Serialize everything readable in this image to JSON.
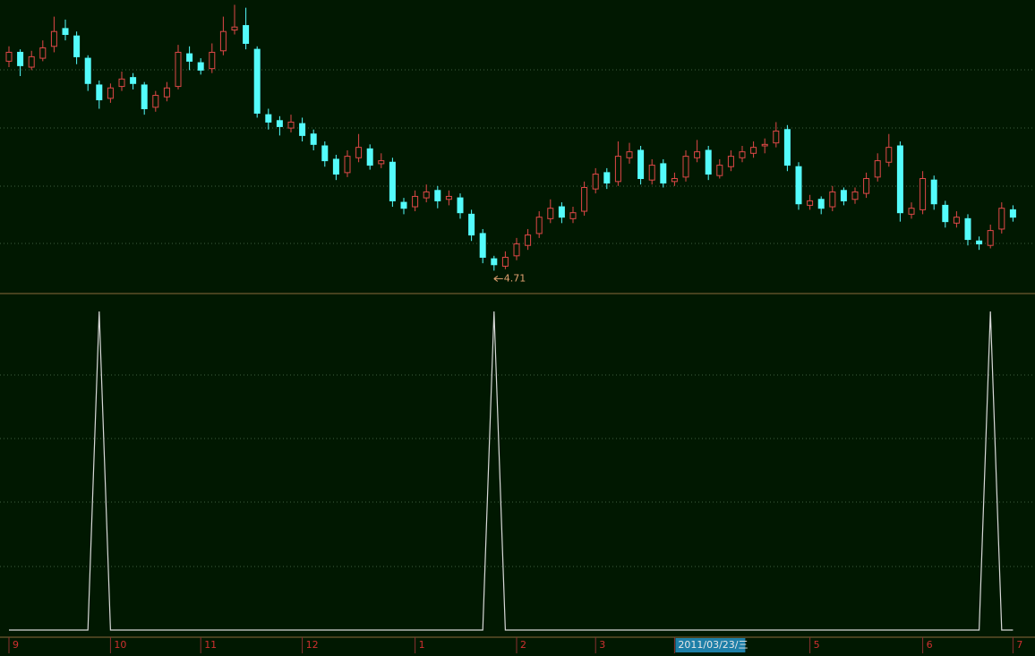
{
  "chart_data": [
    {
      "type": "candlestick",
      "categories": [
        "9",
        null,
        null,
        null,
        null,
        null,
        null,
        null,
        null,
        "10",
        null,
        null,
        null,
        null,
        null,
        null,
        null,
        "11",
        null,
        null,
        null,
        null,
        null,
        null,
        null,
        null,
        "12",
        null,
        null,
        null,
        null,
        null,
        null,
        null,
        null,
        null,
        "1",
        null,
        null,
        null,
        null,
        null,
        null,
        null,
        null,
        "2",
        null,
        null,
        null,
        null,
        null,
        null,
        "3",
        null,
        null,
        null,
        null,
        null,
        null,
        "2011/03/23/三",
        null,
        null,
        null,
        null,
        null,
        null,
        null,
        null,
        null,
        null,
        null,
        "5",
        null,
        null,
        null,
        null,
        null,
        null,
        null,
        null,
        null,
        "6",
        null,
        null,
        null,
        null,
        null,
        null,
        null,
        "7"
      ],
      "highlight_category": 59,
      "open": [
        6.12,
        6.18,
        6.08,
        6.14,
        6.22,
        6.34,
        6.29,
        6.14,
        5.96,
        5.87,
        5.95,
        6.01,
        5.96,
        5.81,
        5.88,
        5.95,
        6.17,
        6.11,
        6.07,
        6.19,
        6.33,
        6.36,
        6.2,
        5.76,
        5.72,
        5.67,
        5.7,
        5.63,
        5.55,
        5.46,
        5.37,
        5.47,
        5.53,
        5.43,
        5.44,
        5.17,
        5.14,
        5.2,
        5.25,
        5.19,
        5.2,
        5.09,
        4.96,
        4.79,
        4.74,
        4.81,
        4.88,
        4.96,
        5.06,
        5.14,
        5.06,
        5.11,
        5.26,
        5.37,
        5.31,
        5.47,
        5.52,
        5.32,
        5.43,
        5.31,
        5.34,
        5.47,
        5.52,
        5.35,
        5.41,
        5.47,
        5.5,
        5.55,
        5.57,
        5.66,
        5.41,
        5.15,
        5.19,
        5.14,
        5.25,
        5.19,
        5.23,
        5.34,
        5.44,
        5.55,
        5.09,
        5.12,
        5.32,
        5.15,
        5.03,
        5.06,
        4.91,
        4.88,
        4.99,
        5.12
      ],
      "high": [
        6.22,
        6.2,
        6.19,
        6.26,
        6.42,
        6.4,
        6.32,
        6.16,
        5.99,
        5.97,
        6.05,
        6.04,
        5.98,
        5.92,
        5.98,
        6.23,
        6.22,
        6.14,
        6.24,
        6.42,
        6.5,
        6.48,
        6.22,
        5.8,
        5.75,
        5.76,
        5.74,
        5.66,
        5.58,
        5.49,
        5.52,
        5.63,
        5.56,
        5.5,
        5.47,
        5.2,
        5.25,
        5.29,
        5.28,
        5.25,
        5.23,
        5.12,
        4.99,
        4.81,
        4.84,
        4.93,
        4.99,
        5.11,
        5.19,
        5.17,
        5.14,
        5.31,
        5.4,
        5.4,
        5.58,
        5.57,
        5.55,
        5.46,
        5.46,
        5.37,
        5.52,
        5.59,
        5.55,
        5.46,
        5.52,
        5.55,
        5.58,
        5.6,
        5.71,
        5.69,
        5.44,
        5.22,
        5.21,
        5.28,
        5.27,
        5.27,
        5.37,
        5.5,
        5.63,
        5.58,
        5.17,
        5.38,
        5.35,
        5.18,
        5.11,
        5.09,
        4.94,
        5.02,
        5.17,
        5.15
      ],
      "low": [
        6.08,
        6.02,
        6.06,
        6.12,
        6.18,
        6.26,
        6.1,
        5.92,
        5.8,
        5.84,
        5.92,
        5.93,
        5.76,
        5.78,
        5.85,
        5.93,
        6.06,
        6.03,
        6.04,
        6.16,
        6.3,
        6.2,
        5.74,
        5.66,
        5.62,
        5.64,
        5.58,
        5.52,
        5.41,
        5.32,
        5.34,
        5.44,
        5.39,
        5.4,
        5.14,
        5.09,
        5.11,
        5.17,
        5.13,
        5.15,
        5.06,
        4.91,
        4.76,
        4.71,
        4.72,
        4.78,
        4.85,
        4.93,
        5.03,
        5.03,
        5.03,
        5.08,
        5.23,
        5.26,
        5.28,
        5.43,
        5.29,
        5.29,
        5.27,
        5.28,
        5.31,
        5.44,
        5.32,
        5.33,
        5.38,
        5.44,
        5.47,
        5.5,
        5.54,
        5.38,
        5.12,
        5.12,
        5.09,
        5.11,
        5.15,
        5.16,
        5.2,
        5.31,
        5.41,
        5.04,
        5.06,
        5.09,
        5.12,
        5.0,
        5.0,
        4.88,
        4.85,
        4.86,
        4.96,
        5.04
      ],
      "close": [
        6.18,
        6.09,
        6.15,
        6.21,
        6.32,
        6.3,
        6.15,
        5.97,
        5.86,
        5.94,
        6.0,
        5.97,
        5.8,
        5.89,
        5.94,
        6.18,
        6.12,
        6.06,
        6.18,
        6.32,
        6.35,
        6.24,
        5.77,
        5.71,
        5.68,
        5.71,
        5.62,
        5.56,
        5.45,
        5.36,
        5.48,
        5.54,
        5.42,
        5.45,
        5.18,
        5.13,
        5.21,
        5.24,
        5.18,
        5.21,
        5.1,
        4.95,
        4.8,
        4.75,
        4.8,
        4.89,
        4.95,
        5.07,
        5.13,
        5.07,
        5.1,
        5.27,
        5.36,
        5.3,
        5.48,
        5.51,
        5.33,
        5.42,
        5.3,
        5.33,
        5.48,
        5.51,
        5.36,
        5.42,
        5.48,
        5.51,
        5.54,
        5.56,
        5.65,
        5.42,
        5.16,
        5.18,
        5.13,
        5.24,
        5.18,
        5.24,
        5.33,
        5.45,
        5.54,
        5.1,
        5.13,
        5.33,
        5.16,
        5.04,
        5.07,
        4.92,
        4.89,
        4.98,
        5.13,
        5.07
      ],
      "up_color": "#e04848",
      "down_color": "#54fcfc",
      "ylim": [
        4.58,
        6.52
      ],
      "annotation": "4.71",
      "annotation_color": "#e0a070"
    },
    {
      "type": "line",
      "values": [
        0,
        0,
        0,
        0,
        0,
        0,
        0,
        0,
        1,
        0,
        0,
        0,
        0,
        0,
        0,
        0,
        0,
        0,
        0,
        0,
        0,
        0,
        0,
        0,
        0,
        0,
        0,
        0,
        0,
        0,
        0,
        0,
        0,
        0,
        0,
        0,
        0,
        0,
        0,
        0,
        0,
        0,
        0,
        1,
        0,
        0,
        0,
        0,
        0,
        0,
        0,
        0,
        0,
        0,
        0,
        0,
        0,
        0,
        0,
        0,
        0,
        0,
        0,
        0,
        0,
        0,
        0,
        0,
        0,
        0,
        0,
        0,
        0,
        0,
        0,
        0,
        0,
        0,
        0,
        0,
        0,
        0,
        0,
        0,
        0,
        0,
        0,
        1,
        0,
        0
      ],
      "color": "#d8d8d8",
      "ylim": [
        0,
        1
      ]
    }
  ]
}
